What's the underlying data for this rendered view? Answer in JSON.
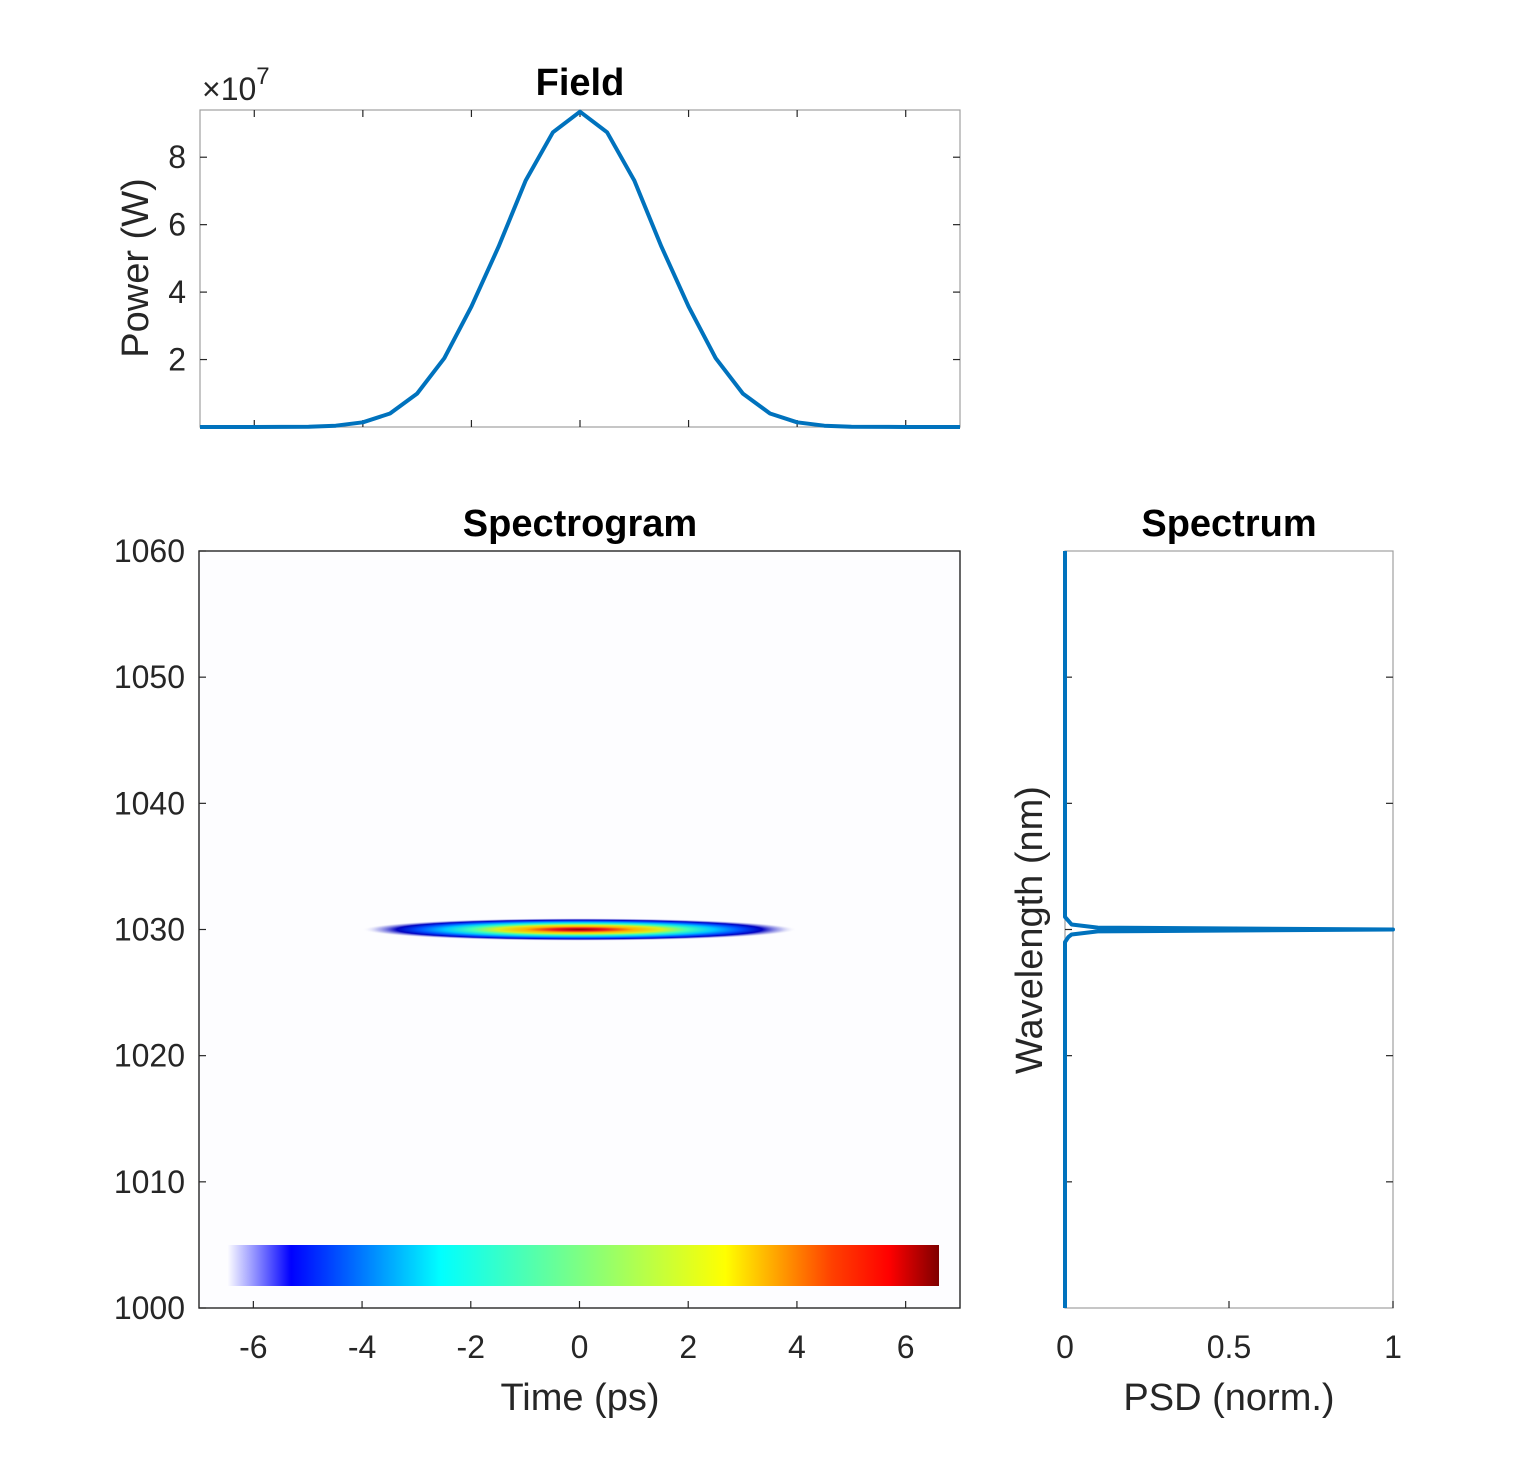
{
  "chart_data": [
    {
      "type": "line",
      "title": "Field",
      "ylabel": "Power (W)",
      "xlabel": "",
      "y_exponent_label": "×10",
      "y_exponent_power": "7",
      "xlim": [
        -7,
        7
      ],
      "ylim": [
        0,
        9.4
      ],
      "y_ticks": [
        2,
        4,
        6,
        8
      ],
      "y_tick_labels": [
        "2",
        "4",
        "6",
        "8"
      ],
      "x_ticks": [
        -6,
        -4,
        -2,
        0,
        2,
        4,
        6
      ],
      "grid": false,
      "line_color": "#0072bd",
      "series": [
        {
          "x": [
            -7,
            -6,
            -5,
            -4.5,
            -4,
            -3.5,
            -3,
            -2.5,
            -2,
            -1.5,
            -1,
            -0.5,
            0,
            0.5,
            1,
            1.5,
            2,
            2.5,
            3,
            3.5,
            4,
            4.5,
            5,
            6,
            7
          ],
          "y": [
            0.0,
            0.0,
            0.01,
            0.04,
            0.14,
            0.4,
            0.99,
            2.04,
            3.57,
            5.35,
            7.31,
            8.74,
            9.35,
            8.74,
            7.31,
            5.35,
            3.57,
            2.04,
            0.99,
            0.4,
            0.14,
            0.04,
            0.01,
            0.0,
            0.0
          ]
        }
      ]
    },
    {
      "type": "heatmap",
      "title": "Spectrogram",
      "xlabel": "Time (ps)",
      "ylabel": "",
      "xlim": [
        -7,
        7
      ],
      "ylim": [
        1000,
        1060
      ],
      "x_ticks": [
        -6,
        -4,
        -2,
        0,
        2,
        4,
        6
      ],
      "x_tick_labels": [
        "-6",
        "-4",
        "-2",
        "0",
        "2",
        "4",
        "6"
      ],
      "y_ticks": [
        1000,
        1010,
        1020,
        1030,
        1040,
        1050,
        1060
      ],
      "y_tick_labels": [
        "1000",
        "1010",
        "1020",
        "1030",
        "1040",
        "1050",
        "1060"
      ],
      "colormap": "jet",
      "peak_time": 0,
      "peak_wavelength": 1030,
      "time_halfwidth": 4,
      "wavelength_halfwidth": 0.9,
      "colorbar": "horizontal, bottom, inside"
    },
    {
      "type": "line",
      "title": "Spectrum",
      "xlabel": "PSD (norm.)",
      "ylabel": "Wavelength (nm)",
      "xlim": [
        0,
        1
      ],
      "ylim": [
        1000,
        1060
      ],
      "x_ticks": [
        0,
        0.5,
        1
      ],
      "x_tick_labels": [
        "0",
        "0.5",
        "1"
      ],
      "y_ticks": [
        1010,
        1020,
        1030,
        1040,
        1050
      ],
      "line_color": "#0072bd",
      "series": [
        {
          "x": [
            0,
            0,
            0.01,
            0.02,
            0.1,
            1.0,
            0.1,
            0.02,
            0.01,
            0,
            0
          ],
          "y": [
            1000,
            1029,
            1029.4,
            1029.6,
            1029.85,
            1030,
            1030.15,
            1030.4,
            1030.7,
            1031,
            1060
          ]
        }
      ]
    }
  ]
}
